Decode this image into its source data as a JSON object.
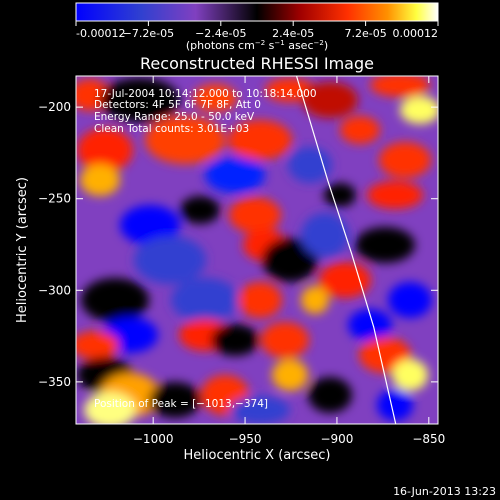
{
  "colorbar": {
    "ticks": [
      "-0.00012",
      "−7.2e-05",
      "−2.4e-05",
      "2.4e-05",
      "7.2e-05",
      "0.00012"
    ],
    "tick_values": [
      -0.00012,
      -7.2e-05,
      -2.4e-05,
      2.4e-05,
      7.2e-05,
      0.00012
    ],
    "range": [
      -0.00012,
      0.00012
    ],
    "unit_prefix": "(photons cm",
    "unit_exp1": "−2",
    "unit_mid": " s",
    "unit_exp2": "−1",
    "unit_mid2": " asec",
    "unit_exp3": "−2",
    "unit_suffix": ")"
  },
  "chart_data": {
    "type": "heatmap",
    "title": "Reconstructed RHESSI Image",
    "xlabel": "Heliocentric X (arcsec)",
    "ylabel": "Heliocentric Y (arcsec)",
    "xlim": [
      -1042,
      -845
    ],
    "ylim": [
      -373,
      -183
    ],
    "x_ticks": [
      -1000,
      -950,
      -900,
      -850
    ],
    "x_tick_labels": [
      "−1000",
      "−950",
      "−900",
      "−850"
    ],
    "y_ticks": [
      -350,
      -300,
      -250,
      -200
    ],
    "y_tick_labels": [
      "−350",
      "−300",
      "−250",
      "−200"
    ],
    "peak": [
      -1013,
      -374
    ],
    "limb_curve": [
      [
        -922,
        -183
      ],
      [
        -905,
        -240
      ],
      [
        -892,
        -280
      ],
      [
        -880,
        -320
      ],
      [
        -868,
        -373
      ]
    ],
    "annotations": [
      "17-Jul-2004 10:14:12.000 to 10:18:14.000",
      "Detectors: 4F 5F 6F 7F 8F, Att 0",
      "Energy Range: 25.0 - 50.0 keV",
      "Clean     Total counts: 3.01E+03"
    ],
    "peak_label": "Position of Peak = [−1013,−374]",
    "colors": {
      "map": [
        "#0000ff",
        "#4b32cc",
        "#7a3fc0",
        "#000000",
        "#a00000",
        "#ff3000",
        "#ff8000",
        "#ffff40",
        "#ffffff"
      ]
    }
  },
  "footer": {
    "timestamp": "16-Jun-2013 13:23"
  }
}
